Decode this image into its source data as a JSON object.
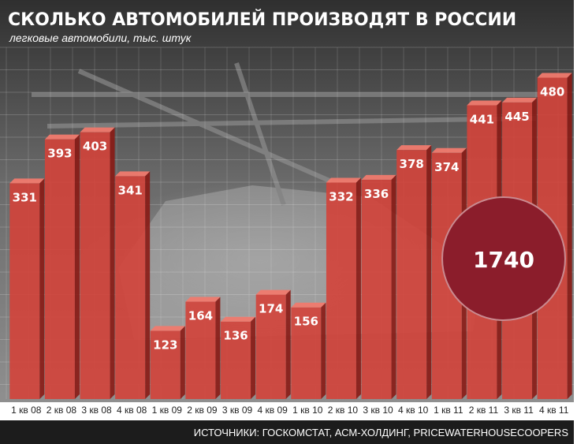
{
  "chart_data": {
    "type": "bar",
    "title": "СКОЛЬКО АВТОМОБИЛЕЙ ПРОИЗВОДЯТ В РОССИИ",
    "subtitle": "легковые автомобили, тыс. штук",
    "categories": [
      "1 кв 08",
      "2 кв 08",
      "3 кв 08",
      "4 кв 08",
      "1 кв 09",
      "2 кв 09",
      "3 кв 09",
      "4 кв 09",
      "1 кв 10",
      "2 кв 10",
      "3 кв 10",
      "4 кв 10",
      "1 кв 11",
      "2 кв 11",
      "3 кв 11",
      "4 кв 11"
    ],
    "values": [
      331,
      393,
      403,
      341,
      123,
      164,
      136,
      174,
      156,
      332,
      336,
      378,
      374,
      441,
      445,
      480
    ],
    "ylim": [
      0,
      525
    ],
    "grid": true,
    "callout": {
      "value": "1740"
    },
    "source": "ИСТОЧНИКИ: ГОСКОМСТАТ, АСМ-ХОЛДИНГ, PRICEWATERHOUSECOOPERS",
    "colors": {
      "bar": "#d3423a",
      "bar_top": "#f07a6e",
      "bar_side": "#8a1a14",
      "callout": "#8b1d2b",
      "background": "#6e6e6e",
      "footer": "#1c1c1c"
    }
  }
}
